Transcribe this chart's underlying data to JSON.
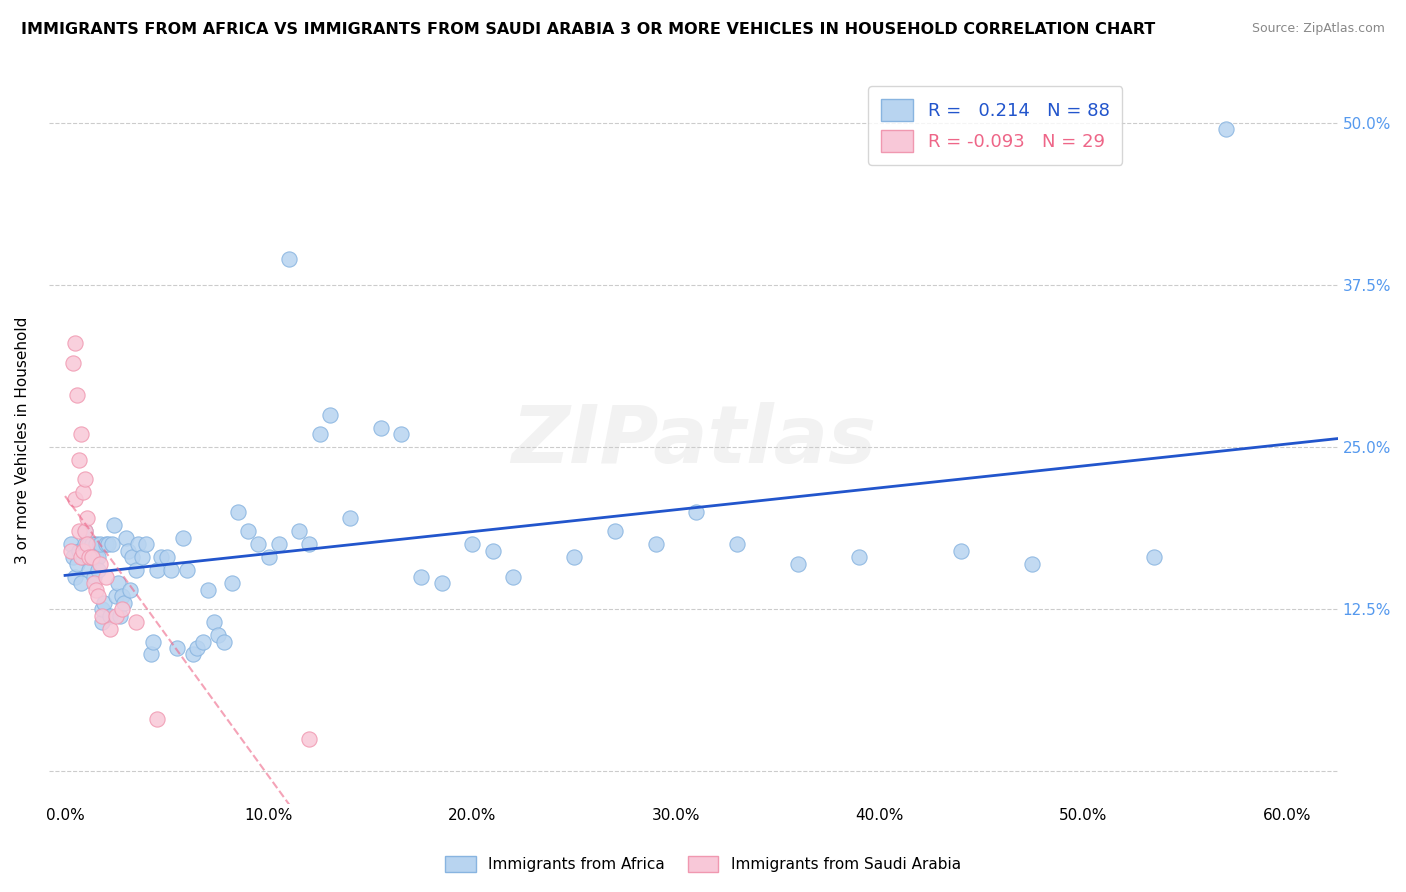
{
  "title": "IMMIGRANTS FROM AFRICA VS IMMIGRANTS FROM SAUDI ARABIA 3 OR MORE VEHICLES IN HOUSEHOLD CORRELATION CHART",
  "source": "Source: ZipAtlas.com",
  "xlabel_ticks": [
    "0.0%",
    "10.0%",
    "20.0%",
    "30.0%",
    "40.0%",
    "50.0%",
    "60.0%"
  ],
  "xlabel_vals": [
    0.0,
    0.1,
    0.2,
    0.3,
    0.4,
    0.5,
    0.6
  ],
  "ylabel_ticks": [
    "50.0%",
    "37.5%",
    "25.0%",
    "12.5%",
    ""
  ],
  "ylabel_vals": [
    0.5,
    0.375,
    0.25,
    0.125,
    0.0
  ],
  "ylabel_label": "3 or more Vehicles in Household",
  "xlim": [
    -0.008,
    0.625
  ],
  "ylim": [
    -0.025,
    0.535
  ],
  "legend_blue_label": "Immigrants from Africa",
  "legend_pink_label": "Immigrants from Saudi Arabia",
  "R_blue": 0.214,
  "N_blue": 88,
  "R_pink": -0.093,
  "N_pink": 29,
  "africa_x": [
    0.003,
    0.004,
    0.005,
    0.006,
    0.007,
    0.008,
    0.009,
    0.01,
    0.01,
    0.011,
    0.012,
    0.012,
    0.013,
    0.013,
    0.014,
    0.014,
    0.015,
    0.015,
    0.016,
    0.016,
    0.017,
    0.018,
    0.018,
    0.019,
    0.02,
    0.021,
    0.022,
    0.023,
    0.024,
    0.025,
    0.026,
    0.027,
    0.028,
    0.029,
    0.03,
    0.031,
    0.032,
    0.033,
    0.035,
    0.036,
    0.038,
    0.04,
    0.042,
    0.043,
    0.045,
    0.047,
    0.05,
    0.052,
    0.055,
    0.058,
    0.06,
    0.063,
    0.065,
    0.068,
    0.07,
    0.073,
    0.075,
    0.078,
    0.082,
    0.085,
    0.09,
    0.095,
    0.1,
    0.105,
    0.11,
    0.115,
    0.12,
    0.125,
    0.13,
    0.14,
    0.155,
    0.165,
    0.175,
    0.185,
    0.2,
    0.21,
    0.22,
    0.25,
    0.27,
    0.29,
    0.31,
    0.33,
    0.36,
    0.39,
    0.44,
    0.475,
    0.535,
    0.57
  ],
  "africa_y": [
    0.175,
    0.165,
    0.15,
    0.16,
    0.17,
    0.145,
    0.165,
    0.185,
    0.175,
    0.165,
    0.175,
    0.155,
    0.165,
    0.175,
    0.15,
    0.165,
    0.165,
    0.175,
    0.165,
    0.155,
    0.175,
    0.115,
    0.125,
    0.13,
    0.175,
    0.175,
    0.12,
    0.175,
    0.19,
    0.135,
    0.145,
    0.12,
    0.135,
    0.13,
    0.18,
    0.17,
    0.14,
    0.165,
    0.155,
    0.175,
    0.165,
    0.175,
    0.09,
    0.1,
    0.155,
    0.165,
    0.165,
    0.155,
    0.095,
    0.18,
    0.155,
    0.09,
    0.095,
    0.1,
    0.14,
    0.115,
    0.105,
    0.1,
    0.145,
    0.2,
    0.185,
    0.175,
    0.165,
    0.175,
    0.395,
    0.185,
    0.175,
    0.26,
    0.275,
    0.195,
    0.265,
    0.26,
    0.15,
    0.145,
    0.175,
    0.17,
    0.15,
    0.165,
    0.185,
    0.175,
    0.2,
    0.175,
    0.16,
    0.165,
    0.17,
    0.16,
    0.165,
    0.495
  ],
  "saudi_x": [
    0.003,
    0.004,
    0.005,
    0.005,
    0.006,
    0.007,
    0.007,
    0.008,
    0.008,
    0.009,
    0.009,
    0.01,
    0.01,
    0.011,
    0.011,
    0.012,
    0.013,
    0.014,
    0.015,
    0.016,
    0.017,
    0.018,
    0.02,
    0.022,
    0.025,
    0.028,
    0.035,
    0.045,
    0.12
  ],
  "saudi_y": [
    0.17,
    0.315,
    0.33,
    0.21,
    0.29,
    0.24,
    0.185,
    0.26,
    0.165,
    0.215,
    0.17,
    0.185,
    0.225,
    0.195,
    0.175,
    0.165,
    0.165,
    0.145,
    0.14,
    0.135,
    0.16,
    0.12,
    0.15,
    0.11,
    0.12,
    0.125,
    0.115,
    0.04,
    0.025
  ],
  "blue_marker_color": "#b8d4f0",
  "blue_marker_edge": "#88b4e0",
  "pink_marker_color": "#f8c8d8",
  "pink_marker_edge": "#f098b0",
  "blue_line_color": "#2255cc",
  "pink_line_color": "#ee6688",
  "grid_color": "#cccccc",
  "background_color": "#ffffff",
  "right_tick_color": "#5599ee"
}
